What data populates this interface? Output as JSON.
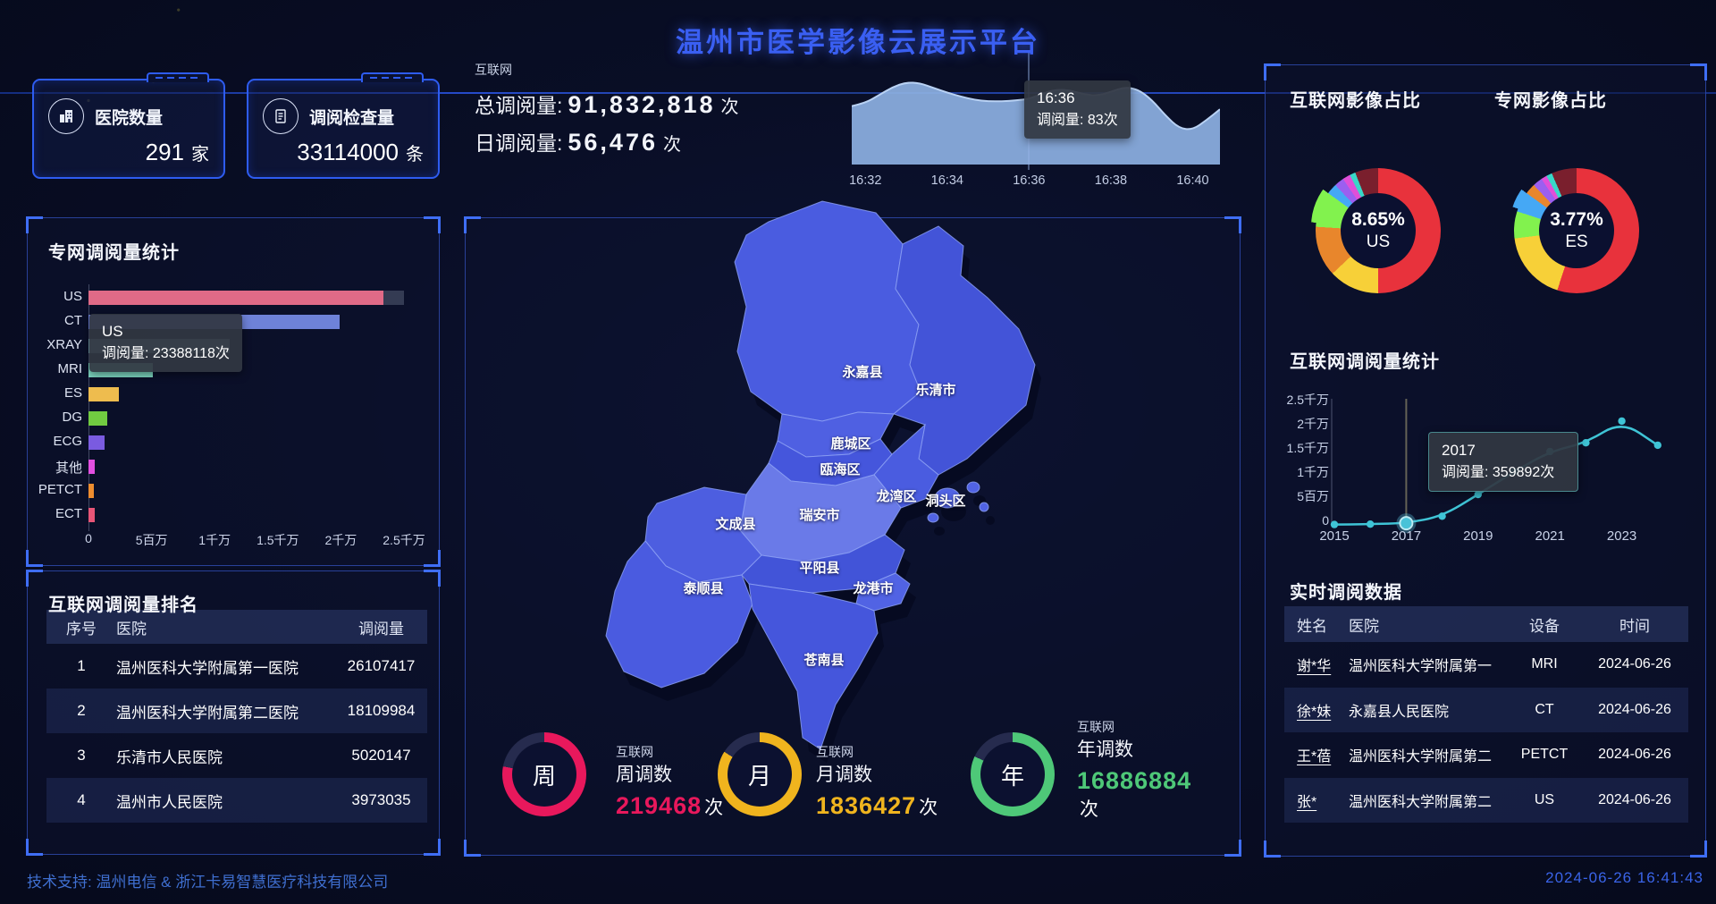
{
  "page_title": "温州市医学影像云展示平台",
  "stat_cards": [
    {
      "icon": "hospital-icon",
      "label": "医院数量",
      "value": "291",
      "unit": "家"
    },
    {
      "icon": "report-icon",
      "label": "调阅检查量",
      "value": "33114000",
      "unit": "条"
    }
  ],
  "internet_stats": {
    "tag": "互联网",
    "total_label": "总调阅量:",
    "total_value": "91,832,818",
    "total_unit": "次",
    "daily_label": "日调阅量:",
    "daily_value": "56,476",
    "daily_unit": "次"
  },
  "chart_data": [
    {
      "id": "private-net-bar",
      "type": "bar",
      "title": "专网调阅量统计",
      "categories": [
        "US",
        "CT",
        "XRAY",
        "MRI",
        "ES",
        "DG",
        "ECG",
        "其他",
        "PETCT",
        "ECT"
      ],
      "values": [
        23388118,
        19900000,
        11200000,
        5100000,
        2400000,
        1500000,
        1300000,
        500000,
        450000,
        480000
      ],
      "colors": [
        "#e06a87",
        "#6e82d8",
        "#6f98a4",
        "#7fd9c3",
        "#eebc4e",
        "#71cb41",
        "#7a5be0",
        "#e24fe0",
        "#ee8d2f",
        "#e85577"
      ],
      "x_ticks": [
        "0",
        "5百万",
        "1千万",
        "1.5千万",
        "2千万",
        "2.5千万"
      ],
      "xmax": 25000000,
      "hover_index": 0,
      "grid": false,
      "legend": "none",
      "tooltip": {
        "line1": "US",
        "line2": "调阅量: 23388118次"
      }
    },
    {
      "id": "internet-minute-area",
      "type": "area",
      "title": "",
      "x_ticks": [
        "16:32",
        "16:34",
        "16:36",
        "16:38",
        "16:40"
      ],
      "values": [
        74,
        78,
        88,
        98,
        104,
        103,
        97,
        91,
        86,
        82,
        80,
        80,
        81,
        83,
        90,
        95,
        94,
        89,
        87,
        92,
        98,
        95,
        82,
        62,
        46,
        44,
        56,
        70
      ],
      "ymax": 120,
      "unit": "次",
      "pointer_index": 13,
      "grid": false,
      "tooltip": {
        "line1": "16:36",
        "line2": "调阅量: 83次"
      }
    },
    {
      "id": "internet-image-share",
      "type": "pie",
      "title": "互联网影像占比",
      "center_value": "8.65%",
      "center_label": "US",
      "slices": [
        {
          "color": "#e8323c",
          "pct": 50
        },
        {
          "color": "#f7d038",
          "pct": 13
        },
        {
          "color": "#e8862c",
          "pct": 13
        },
        {
          "color": "#82f24e",
          "pct": 9,
          "offset": true
        },
        {
          "color": "#45a8f5",
          "pct": 3
        },
        {
          "color": "#9b5ff0",
          "pct": 2.5
        },
        {
          "color": "#e04fd8",
          "pct": 2
        },
        {
          "color": "#38d8c8",
          "pct": 1.5
        },
        {
          "color": "#7a1f2d",
          "pct": 6
        }
      ]
    },
    {
      "id": "private-image-share",
      "type": "pie",
      "title": "专网影像占比",
      "center_value": "3.77%",
      "center_label": "ES",
      "slices": [
        {
          "color": "#e8323c",
          "pct": 55
        },
        {
          "color": "#f7d038",
          "pct": 18
        },
        {
          "color": "#82f24e",
          "pct": 7
        },
        {
          "color": "#45a8f5",
          "pct": 5,
          "offset": true
        },
        {
          "color": "#e8862c",
          "pct": 3
        },
        {
          "color": "#9b5ff0",
          "pct": 2.5
        },
        {
          "color": "#e04fd8",
          "pct": 1.5
        },
        {
          "color": "#38d8c8",
          "pct": 1.5
        },
        {
          "color": "#7a1f2d",
          "pct": 6.5
        }
      ]
    },
    {
      "id": "internet-yearly-line",
      "type": "line",
      "title": "互联网调阅量统计",
      "x": [
        2015,
        2016,
        2017,
        2018,
        2019,
        2020,
        2021,
        2022,
        2023,
        2024
      ],
      "values": [
        80000,
        150000,
        359892,
        1800000,
        6300000,
        11000000,
        15200000,
        17000000,
        21500000,
        16500000
      ],
      "y_ticks": [
        "2.5千万",
        "2千万",
        "1.5千万",
        "1千万",
        "5百万",
        "0"
      ],
      "x_ticks": [
        "2015",
        "2017",
        "2019",
        "2021",
        "2023"
      ],
      "ymax": 25000000,
      "highlight_index": 2,
      "grid": false,
      "tooltip": {
        "line1": "2017",
        "line2": "调阅量: 359892次"
      }
    }
  ],
  "rank_table": {
    "title": "互联网调阅量排名",
    "headers": [
      "序号",
      "医院",
      "调阅量"
    ],
    "rows": [
      [
        "1",
        "温州医科大学附属第一医院",
        "26107417"
      ],
      [
        "2",
        "温州医科大学附属第二医院",
        "18109984"
      ],
      [
        "3",
        "乐清市人民医院",
        "5020147"
      ],
      [
        "4",
        "温州市人民医院",
        "3973035"
      ]
    ]
  },
  "realtime_table": {
    "title": "实时调阅数据",
    "headers": [
      "姓名",
      "医院",
      "设备",
      "时间"
    ],
    "rows": [
      [
        "谢*华",
        "温州医科大学附属第一",
        "MRI",
        "2024-06-26"
      ],
      [
        "徐*妹",
        "永嘉县人民医院",
        "CT",
        "2024-06-26"
      ],
      [
        "王*蓓",
        "温州医科大学附属第二",
        "PETCT",
        "2024-06-26"
      ],
      [
        "张*",
        "温州医科大学附属第二",
        "US",
        "2024-06-26"
      ]
    ]
  },
  "map": {
    "districts": [
      "永嘉县",
      "乐清市",
      "鹿城区",
      "瓯海区",
      "龙湾区",
      "洞头区",
      "瑞安市",
      "文成县",
      "泰顺县",
      "平阳县",
      "龙港市",
      "苍南县"
    ]
  },
  "rings": [
    {
      "char": "周",
      "tag": "互联网",
      "label": "周调数",
      "value": "219468",
      "unit": "次",
      "color": "#e8185c",
      "pct": 78
    },
    {
      "char": "月",
      "tag": "互联网",
      "label": "月调数",
      "value": "1836427",
      "unit": "次",
      "color": "#f0b41e",
      "pct": 84
    },
    {
      "char": "年",
      "tag": "互联网",
      "label": "年调数",
      "value": "16886884",
      "unit": "次",
      "color": "#4ec878",
      "pct": 82
    }
  ],
  "footer": {
    "support": "技术支持: 温州电信 & 浙江卡易智慧医疗科技有限公司",
    "timestamp": "2024-06-26 16:41:43"
  }
}
